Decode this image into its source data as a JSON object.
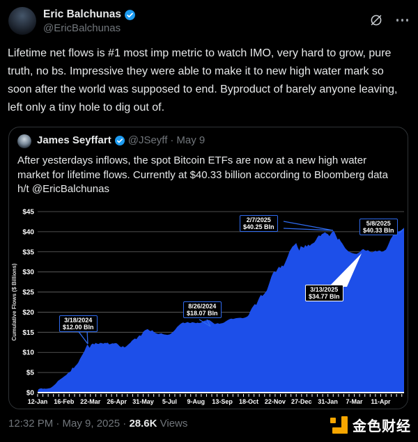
{
  "tweet": {
    "author": {
      "name": "Eric Balchunas",
      "handle": "@EricBalchunas"
    },
    "text": "Lifetime net flows is #1 most imp metric to watch IMO, very hard to grow, pure truth, no bs. Impressive they were able to make it to new high water mark so soon after the world was supposed to end. Byproduct of barely anyone leaving, left only a tiny hole to dig out of."
  },
  "quote": {
    "author": {
      "name": "James Seyffart",
      "handle": "@JSeyff",
      "separator": "·",
      "date": "May 9"
    },
    "text": "After yesterdays inflows, the spot Bitcoin ETFs are now at a new high water market for lifetime flows. Currently at $40.33 billion according to Bloomberg data h/t @EricBalchunas"
  },
  "chart_data": {
    "type": "area",
    "title": "",
    "xlabel": "",
    "ylabel": "Cumulative Flows ($ Billions)",
    "ylim": [
      0,
      45
    ],
    "x_range": [
      0,
      486
    ],
    "grid": true,
    "colors": {
      "area": "#1d4fe9",
      "grid": "#8a8a8a",
      "background": "#000000",
      "annotation_border": "#2f6bef",
      "axis_text": "#ffffff"
    },
    "y_ticks": [
      {
        "label": "$0",
        "value": 0
      },
      {
        "label": "$5",
        "value": 5
      },
      {
        "label": "$10",
        "value": 10
      },
      {
        "label": "$15",
        "value": 15
      },
      {
        "label": "$20",
        "value": 20
      },
      {
        "label": "$25",
        "value": 25
      },
      {
        "label": "$30",
        "value": 30
      },
      {
        "label": "$35",
        "value": 35
      },
      {
        "label": "$40",
        "value": 40
      },
      {
        "label": "$45",
        "value": 45
      }
    ],
    "x_ticks": [
      {
        "label": "12-Jan",
        "day": 0
      },
      {
        "label": "16-Feb",
        "day": 35
      },
      {
        "label": "22-Mar",
        "day": 70
      },
      {
        "label": "26-Apr",
        "day": 105
      },
      {
        "label": "31-May",
        "day": 140
      },
      {
        "label": "5-Jul",
        "day": 175
      },
      {
        "label": "9-Aug",
        "day": 210
      },
      {
        "label": "13-Sep",
        "day": 245
      },
      {
        "label": "18-Oct",
        "day": 280
      },
      {
        "label": "22-Nov",
        "day": 315
      },
      {
        "label": "27-Dec",
        "day": 350
      },
      {
        "label": "31-Jan",
        "day": 385
      },
      {
        "label": "7-Mar",
        "day": 420
      },
      {
        "label": "11-Apr",
        "day": 455
      }
    ],
    "annotations": [
      {
        "date": "3/18/2024",
        "value": "$12.00 Bln",
        "day": 66,
        "y": 12.0
      },
      {
        "date": "8/26/2024",
        "value": "$18.07 Bln",
        "day": 227,
        "y": 18.07
      },
      {
        "date": "2/7/2025",
        "value": "$40.25 Bln",
        "day": 392,
        "y": 40.25
      },
      {
        "date": "3/13/2025",
        "value": "$34.77 Bln",
        "day": 426,
        "y": 34.77
      },
      {
        "date": "5/8/2025",
        "value": "$40.33 Bln",
        "day": 482,
        "y": 40.33
      }
    ],
    "series": [
      {
        "name": "Cumulative Flows",
        "points": [
          [
            0,
            0.2
          ],
          [
            1,
            0.8
          ],
          [
            3,
            1.0
          ],
          [
            5,
            1.05
          ],
          [
            7,
            0.95
          ],
          [
            9,
            1.0
          ],
          [
            11,
            0.95
          ],
          [
            13,
            1.0
          ],
          [
            15,
            1.05
          ],
          [
            17,
            1.15
          ],
          [
            19,
            1.4
          ],
          [
            21,
            1.7
          ],
          [
            24,
            2.2
          ],
          [
            27,
            2.9
          ],
          [
            30,
            3.3
          ],
          [
            33,
            3.7
          ],
          [
            35,
            4.0
          ],
          [
            38,
            4.4
          ],
          [
            40,
            4.8
          ],
          [
            42,
            5.05
          ],
          [
            44,
            5.3
          ],
          [
            46,
            6.2
          ],
          [
            48,
            6.1
          ],
          [
            50,
            6.6
          ],
          [
            52,
            7.0
          ],
          [
            54,
            7.5
          ],
          [
            56,
            8.3
          ],
          [
            58,
            9.0
          ],
          [
            60,
            9.6
          ],
          [
            62,
            10.3
          ],
          [
            64,
            11.2
          ],
          [
            66,
            12.0
          ],
          [
            68,
            11.4
          ],
          [
            69,
            11.15
          ],
          [
            71,
            11.9
          ],
          [
            73,
            12.2
          ],
          [
            75,
            12.0
          ],
          [
            77,
            12.35
          ],
          [
            79,
            12.15
          ],
          [
            81,
            12.1
          ],
          [
            83,
            12.35
          ],
          [
            85,
            12.3
          ],
          [
            87,
            12.15
          ],
          [
            89,
            12.35
          ],
          [
            91,
            12.3
          ],
          [
            93,
            12.4
          ],
          [
            95,
            12.0
          ],
          [
            97,
            12.1
          ],
          [
            99,
            12.25
          ],
          [
            101,
            12.2
          ],
          [
            103,
            12.3
          ],
          [
            105,
            12.25
          ],
          [
            107,
            11.9
          ],
          [
            109,
            11.5
          ],
          [
            111,
            11.3
          ],
          [
            113,
            11.55
          ],
          [
            115,
            11.25
          ],
          [
            117,
            11.4
          ],
          [
            119,
            11.75
          ],
          [
            121,
            12.1
          ],
          [
            123,
            12.4
          ],
          [
            125,
            12.9
          ],
          [
            127,
            13.2
          ],
          [
            129,
            13.45
          ],
          [
            131,
            13.3
          ],
          [
            133,
            13.8
          ],
          [
            135,
            14.25
          ],
          [
            137,
            14.1
          ],
          [
            139,
            14.7
          ],
          [
            140,
            15.1
          ],
          [
            142,
            15.45
          ],
          [
            144,
            15.65
          ],
          [
            146,
            15.8
          ],
          [
            148,
            15.45
          ],
          [
            150,
            15.3
          ],
          [
            152,
            15.5
          ],
          [
            154,
            15.1
          ],
          [
            156,
            14.85
          ],
          [
            158,
            14.7
          ],
          [
            160,
            14.55
          ],
          [
            162,
            14.65
          ],
          [
            164,
            14.75
          ],
          [
            166,
            14.55
          ],
          [
            168,
            14.45
          ],
          [
            170,
            14.4
          ],
          [
            172,
            14.35
          ],
          [
            175,
            14.45
          ],
          [
            177,
            14.7
          ],
          [
            179,
            15.0
          ],
          [
            181,
            15.35
          ],
          [
            183,
            15.8
          ],
          [
            185,
            16.3
          ],
          [
            187,
            16.65
          ],
          [
            189,
            17.0
          ],
          [
            191,
            17.25
          ],
          [
            193,
            17.45
          ],
          [
            195,
            17.25
          ],
          [
            197,
            17.4
          ],
          [
            199,
            17.55
          ],
          [
            201,
            17.35
          ],
          [
            203,
            17.3
          ],
          [
            205,
            17.5
          ],
          [
            207,
            17.45
          ],
          [
            210,
            17.25
          ],
          [
            212,
            17.4
          ],
          [
            214,
            17.3
          ],
          [
            216,
            17.35
          ],
          [
            218,
            17.55
          ],
          [
            220,
            17.75
          ],
          [
            222,
            17.9
          ],
          [
            224,
            17.95
          ],
          [
            227,
            18.07
          ],
          [
            229,
            17.9
          ],
          [
            231,
            17.6
          ],
          [
            233,
            17.3
          ],
          [
            235,
            17.05
          ],
          [
            237,
            17.15
          ],
          [
            239,
            17.25
          ],
          [
            241,
            17.1
          ],
          [
            243,
            17.2
          ],
          [
            245,
            17.25
          ],
          [
            247,
            17.4
          ],
          [
            249,
            17.65
          ],
          [
            251,
            17.9
          ],
          [
            253,
            18.1
          ],
          [
            255,
            18.3
          ],
          [
            257,
            18.4
          ],
          [
            259,
            18.3
          ],
          [
            261,
            18.4
          ],
          [
            263,
            18.5
          ],
          [
            266,
            18.55
          ],
          [
            269,
            18.6
          ],
          [
            272,
            18.5
          ],
          [
            275,
            18.65
          ],
          [
            278,
            18.9
          ],
          [
            280,
            19.3
          ],
          [
            282,
            20.2
          ],
          [
            284,
            21.0
          ],
          [
            286,
            21.5
          ],
          [
            288,
            22.0
          ],
          [
            290,
            21.8
          ],
          [
            292,
            22.7
          ],
          [
            294,
            23.6
          ],
          [
            296,
            24.3
          ],
          [
            298,
            24.0
          ],
          [
            300,
            24.4
          ],
          [
            302,
            24.9
          ],
          [
            304,
            25.4
          ],
          [
            306,
            26.5
          ],
          [
            308,
            27.6
          ],
          [
            310,
            28.8
          ],
          [
            312,
            29.7
          ],
          [
            314,
            30.2
          ],
          [
            316,
            29.9
          ],
          [
            318,
            30.7
          ],
          [
            320,
            31.3
          ],
          [
            322,
            31.0
          ],
          [
            324,
            31.6
          ],
          [
            326,
            31.4
          ],
          [
            328,
            32.2
          ],
          [
            330,
            33.1
          ],
          [
            332,
            34.0
          ],
          [
            334,
            35.1
          ],
          [
            336,
            35.7
          ],
          [
            338,
            36.3
          ],
          [
            340,
            36.6
          ],
          [
            342,
            37.0
          ],
          [
            343,
            37.2
          ],
          [
            345,
            36.1
          ],
          [
            347,
            35.3
          ],
          [
            349,
            36.4
          ],
          [
            351,
            36.2
          ],
          [
            353,
            36.0
          ],
          [
            355,
            36.7
          ],
          [
            357,
            36.3
          ],
          [
            359,
            36.8
          ],
          [
            361,
            36.5
          ],
          [
            363,
            36.9
          ],
          [
            365,
            37.1
          ],
          [
            367,
            37.35
          ],
          [
            369,
            37.9
          ],
          [
            371,
            38.6
          ],
          [
            373,
            39.1
          ],
          [
            375,
            38.9
          ],
          [
            377,
            39.4
          ],
          [
            379,
            39.6
          ],
          [
            381,
            39.85
          ],
          [
            383,
            39.6
          ],
          [
            385,
            39.4
          ],
          [
            387,
            38.9
          ],
          [
            389,
            39.5
          ],
          [
            391,
            40.0
          ],
          [
            392,
            40.25
          ],
          [
            394,
            39.8
          ],
          [
            396,
            38.9
          ],
          [
            398,
            38.0
          ],
          [
            400,
            38.3
          ],
          [
            402,
            37.6
          ],
          [
            404,
            37.1
          ],
          [
            406,
            36.5
          ],
          [
            408,
            35.9
          ],
          [
            410,
            35.5
          ],
          [
            412,
            35.15
          ],
          [
            414,
            34.95
          ],
          [
            417,
            34.7
          ],
          [
            420,
            34.55
          ],
          [
            423,
            34.5
          ],
          [
            426,
            34.77
          ],
          [
            428,
            35.1
          ],
          [
            430,
            35.5
          ],
          [
            432,
            35.7
          ],
          [
            434,
            35.4
          ],
          [
            436,
            35.25
          ],
          [
            438,
            35.45
          ],
          [
            440,
            35.15
          ],
          [
            442,
            34.95
          ],
          [
            444,
            34.9
          ],
          [
            446,
            35.1
          ],
          [
            448,
            35.25
          ],
          [
            450,
            35.1
          ],
          [
            452,
            35.25
          ],
          [
            454,
            35.3
          ],
          [
            456,
            35.05
          ],
          [
            458,
            35.1
          ],
          [
            460,
            35.3
          ],
          [
            462,
            35.55
          ],
          [
            464,
            36.3
          ],
          [
            466,
            37.2
          ],
          [
            468,
            38.1
          ],
          [
            470,
            38.7
          ],
          [
            472,
            39.3
          ],
          [
            474,
            39.8
          ],
          [
            476,
            40.0
          ],
          [
            478,
            40.05
          ],
          [
            480,
            40.15
          ],
          [
            482,
            40.33
          ],
          [
            484,
            40.6
          ],
          [
            486,
            41.0
          ]
        ]
      }
    ]
  },
  "footer": {
    "timestamp": "12:32 PM · May 9, 2025",
    "separator": " · ",
    "views_count": "28.6K",
    "views_label": " Views",
    "watermark": "金色财经"
  }
}
